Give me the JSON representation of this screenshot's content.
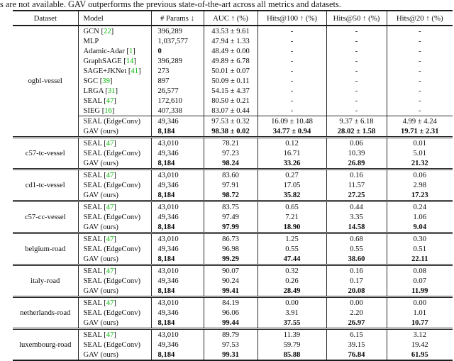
{
  "caption": "s are not available. GAV outperforms the previous state-of-the-art across all metrics and datasets.",
  "colors": {
    "citation_green": "#00b800",
    "rule_color": "#1c1c1c",
    "text_color": "#111111",
    "background": "#ffffff"
  },
  "table": {
    "columns": [
      "Dataset",
      "Model",
      "# Params ↓",
      "AUC ↑ (%)",
      "Hits@100 ↑ (%)",
      "Hits@50 ↑ (%)",
      "Hits@20 ↑ (%)"
    ],
    "blocks": [
      {
        "dataset": "ogbl-vessel",
        "subblocks": [
          {
            "rows": [
              {
                "model": "GCN",
                "cite": "22",
                "params": "396,289",
                "params_bold": false,
                "auc": "43.53 ± 9.61",
                "h100": "-",
                "h50": "-",
                "h20": "-",
                "metrics_bold": false
              },
              {
                "model": "MLP",
                "cite": null,
                "params": "1,037,577",
                "params_bold": false,
                "auc": "47.94 ± 1.33",
                "h100": "-",
                "h50": "-",
                "h20": "-",
                "metrics_bold": false
              },
              {
                "model": "Adamic-Adar",
                "cite": "1",
                "params": "0",
                "params_bold": true,
                "auc": "48.49 ± 0.00",
                "h100": "-",
                "h50": "-",
                "h20": "-",
                "metrics_bold": false
              },
              {
                "model": "GraphSAGE",
                "cite": "14",
                "params": "396,289",
                "params_bold": false,
                "auc": "49.89 ± 6.78",
                "h100": "-",
                "h50": "-",
                "h20": "-",
                "metrics_bold": false
              },
              {
                "model": "SAGE+JKNet",
                "cite": "41",
                "params": "273",
                "params_bold": false,
                "auc": "50.01 ± 0.07",
                "h100": "-",
                "h50": "-",
                "h20": "-",
                "metrics_bold": false
              },
              {
                "model": "SGC",
                "cite": "39",
                "params": "897",
                "params_bold": false,
                "auc": "50.09 ± 0.11",
                "h100": "-",
                "h50": "-",
                "h20": "-",
                "metrics_bold": false
              },
              {
                "model": "LRGA",
                "cite": "31",
                "params": "26,577",
                "params_bold": false,
                "auc": "54.15 ± 4.37",
                "h100": "-",
                "h50": "-",
                "h20": "-",
                "metrics_bold": false
              },
              {
                "model": "SEAL",
                "cite": "47",
                "params": "172,610",
                "params_bold": false,
                "auc": "80.50 ± 0.21",
                "h100": "-",
                "h50": "-",
                "h20": "-",
                "metrics_bold": false
              },
              {
                "model": "SIEG",
                "cite": "16",
                "params": "407,338",
                "params_bold": false,
                "auc": "83.07 ± 0.44",
                "h100": "-",
                "h50": "-",
                "h20": "-",
                "metrics_bold": false
              }
            ]
          },
          {
            "rows": [
              {
                "model": "SEAL (EdgeConv)",
                "cite": null,
                "params": "49,346",
                "params_bold": false,
                "auc": "97.53 ± 0.32",
                "h100": "16.09 ± 10.48",
                "h50": "9.37 ± 6.18",
                "h20": "4.99 ± 4.24",
                "metrics_bold": false
              },
              {
                "model": "GAV (ours)",
                "cite": null,
                "params": "8,184",
                "params_bold": true,
                "auc": "98.38 ± 0.02",
                "h100": "34.77 ± 0.94",
                "h50": "28.02 ± 1.58",
                "h20": "19.71 ± 2.31",
                "metrics_bold": true
              }
            ]
          }
        ]
      },
      {
        "dataset": "c57-tc-vessel",
        "subblocks": [
          {
            "rows": [
              {
                "model": "SEAL",
                "cite": "47",
                "params": "43,010",
                "params_bold": false,
                "auc": "78.21",
                "h100": "0.12",
                "h50": "0.06",
                "h20": "0.01",
                "metrics_bold": false
              },
              {
                "model": "SEAL (EdgeConv)",
                "cite": null,
                "params": "49,346",
                "params_bold": false,
                "auc": "97.23",
                "h100": "16.71",
                "h50": "10.39",
                "h20": "5.01",
                "metrics_bold": false
              },
              {
                "model": "GAV (ours)",
                "cite": null,
                "params": "8,184",
                "params_bold": true,
                "auc": "98.24",
                "h100": "33.26",
                "h50": "26.89",
                "h20": "21.32",
                "metrics_bold": true
              }
            ]
          }
        ]
      },
      {
        "dataset": "cd1-tc-vessel",
        "subblocks": [
          {
            "rows": [
              {
                "model": "SEAL",
                "cite": "47",
                "params": "43,010",
                "params_bold": false,
                "auc": "83.60",
                "h100": "0.27",
                "h50": "0.16",
                "h20": "0.06",
                "metrics_bold": false
              },
              {
                "model": "SEAL (EdgeConv)",
                "cite": null,
                "params": "49,346",
                "params_bold": false,
                "auc": "97.91",
                "h100": "17.05",
                "h50": "11.57",
                "h20": "2.98",
                "metrics_bold": false
              },
              {
                "model": "GAV (ours)",
                "cite": null,
                "params": "8,184",
                "params_bold": true,
                "auc": "98.72",
                "h100": "35.82",
                "h50": "27.25",
                "h20": "17.23",
                "metrics_bold": true
              }
            ]
          }
        ]
      },
      {
        "dataset": "c57-cc-vessel",
        "subblocks": [
          {
            "rows": [
              {
                "model": "SEAL",
                "cite": "47",
                "params": "43,010",
                "params_bold": false,
                "auc": "83.75",
                "h100": "0.65",
                "h50": "0.44",
                "h20": "0.24",
                "metrics_bold": false
              },
              {
                "model": "SEAL (EdgeConv)",
                "cite": null,
                "params": "49,346",
                "params_bold": false,
                "auc": "97.49",
                "h100": "7.21",
                "h50": "3.35",
                "h20": "1.06",
                "metrics_bold": false
              },
              {
                "model": "GAV (ours)",
                "cite": null,
                "params": "8,184",
                "params_bold": true,
                "auc": "97.99",
                "h100": "18.90",
                "h50": "14.58",
                "h20": "9.04",
                "metrics_bold": true
              }
            ]
          }
        ]
      },
      {
        "dataset": "belgium-road",
        "subblocks": [
          {
            "rows": [
              {
                "model": "SEAL",
                "cite": "47",
                "params": "43,010",
                "params_bold": false,
                "auc": "86.73",
                "h100": "1.25",
                "h50": "0.68",
                "h20": "0.30",
                "metrics_bold": false
              },
              {
                "model": "SEAL (EdgeConv)",
                "cite": null,
                "params": "49,346",
                "params_bold": false,
                "auc": "96.98",
                "h100": "0.55",
                "h50": "0.55",
                "h20": "0.51",
                "metrics_bold": false
              },
              {
                "model": "GAV (ours)",
                "cite": null,
                "params": "8,184",
                "params_bold": true,
                "auc": "99.29",
                "h100": "47.44",
                "h50": "38.60",
                "h20": "22.11",
                "metrics_bold": true
              }
            ]
          }
        ]
      },
      {
        "dataset": "italy-road",
        "subblocks": [
          {
            "rows": [
              {
                "model": "SEAL",
                "cite": "47",
                "params": "43,010",
                "params_bold": false,
                "auc": "90.07",
                "h100": "0.32",
                "h50": "0.16",
                "h20": "0.08",
                "metrics_bold": false
              },
              {
                "model": "SEAL (EdgeConv)",
                "cite": null,
                "params": "49,346",
                "params_bold": false,
                "auc": "90.24",
                "h100": "0.26",
                "h50": "0.17",
                "h20": "0.07",
                "metrics_bold": false
              },
              {
                "model": "GAV (ours)",
                "cite": null,
                "params": "8,184",
                "params_bold": true,
                "auc": "99.41",
                "h100": "28.49",
                "h50": "20.08",
                "h20": "11.99",
                "metrics_bold": true
              }
            ]
          }
        ]
      },
      {
        "dataset": "netherlands-road",
        "subblocks": [
          {
            "rows": [
              {
                "model": "SEAL",
                "cite": "47",
                "params": "43,010",
                "params_bold": false,
                "auc": "84.19",
                "h100": "0.00",
                "h50": "0.00",
                "h20": "0.00",
                "metrics_bold": false
              },
              {
                "model": "SEAL (EdgeConv)",
                "cite": null,
                "params": "49,346",
                "params_bold": false,
                "auc": "96.06",
                "h100": "3.91",
                "h50": "2.20",
                "h20": "1.01",
                "metrics_bold": false
              },
              {
                "model": "GAV (ours)",
                "cite": null,
                "params": "8,184",
                "params_bold": true,
                "auc": "99.44",
                "h100": "37.55",
                "h50": "26.97",
                "h20": "10.77",
                "metrics_bold": true
              }
            ]
          }
        ]
      },
      {
        "dataset": "luxembourg-road",
        "subblocks": [
          {
            "rows": [
              {
                "model": "SEAL",
                "cite": "47",
                "params": "43,010",
                "params_bold": false,
                "auc": "89.79",
                "h100": "11.39",
                "h50": "6.15",
                "h20": "3.12",
                "metrics_bold": false
              },
              {
                "model": "SEAL (EdgeConv)",
                "cite": null,
                "params": "49,346",
                "params_bold": false,
                "auc": "97.53",
                "h100": "59.79",
                "h50": "39.15",
                "h20": "19.42",
                "metrics_bold": false
              },
              {
                "model": "GAV (ours)",
                "cite": null,
                "params": "8,184",
                "params_bold": true,
                "auc": "99.31",
                "h100": "85.88",
                "h50": "76.84",
                "h20": "61.95",
                "metrics_bold": true
              }
            ]
          }
        ]
      }
    ]
  }
}
